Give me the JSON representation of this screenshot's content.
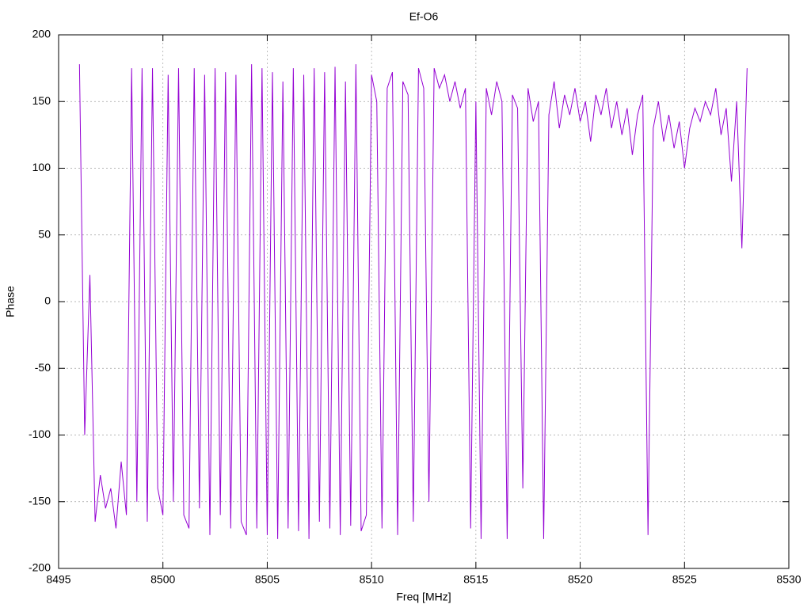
{
  "chart_data": {
    "type": "line",
    "title": "Ef-O6",
    "xlabel": "Freq [MHz]",
    "ylabel": "Phase",
    "x": [
      8496,
      8496.25,
      8496.5,
      8496.75,
      8497,
      8497.25,
      8497.5,
      8497.75,
      8498,
      8498.25,
      8498.5,
      8498.75,
      8499,
      8499.25,
      8499.5,
      8499.75,
      8500,
      8500.25,
      8500.5,
      8500.75,
      8501,
      8501.25,
      8501.5,
      8501.75,
      8502,
      8502.25,
      8502.5,
      8502.75,
      8503,
      8503.25,
      8503.5,
      8503.75,
      8504,
      8504.25,
      8504.5,
      8504.75,
      8505,
      8505.25,
      8505.5,
      8505.75,
      8506,
      8506.25,
      8506.5,
      8506.75,
      8507,
      8507.25,
      8507.5,
      8507.75,
      8508,
      8508.25,
      8508.5,
      8508.75,
      8509,
      8509.25,
      8509.5,
      8509.75,
      8510,
      8510.25,
      8510.5,
      8510.75,
      8511,
      8511.25,
      8511.5,
      8511.75,
      8512,
      8512.25,
      8512.5,
      8512.75,
      8513,
      8513.25,
      8513.5,
      8513.75,
      8514,
      8514.25,
      8514.5,
      8514.75,
      8515,
      8515.25,
      8515.5,
      8515.75,
      8516,
      8516.25,
      8516.5,
      8516.75,
      8517,
      8517.25,
      8517.5,
      8517.75,
      8518,
      8518.25,
      8518.5,
      8518.75,
      8519,
      8519.25,
      8519.5,
      8519.75,
      8520,
      8520.25,
      8520.5,
      8520.75,
      8521,
      8521.25,
      8521.5,
      8521.75,
      8522,
      8522.25,
      8522.5,
      8522.75,
      8523,
      8523.25,
      8523.5,
      8523.75,
      8524,
      8524.25,
      8524.5,
      8524.75,
      8525,
      8525.25,
      8525.5,
      8525.75,
      8526,
      8526.25,
      8526.5,
      8526.75,
      8527,
      8527.25,
      8527.5,
      8527.75,
      8528
    ],
    "series": [
      {
        "color": "#9400d3",
        "values": [
          178,
          -100,
          20,
          -165,
          -130,
          -155,
          -140,
          -170,
          -120,
          -160,
          175,
          -150,
          175,
          -165,
          175,
          -140,
          -160,
          170,
          -150,
          175,
          -160,
          -170,
          175,
          -155,
          170,
          -175,
          175,
          -160,
          172,
          -170,
          170,
          -165,
          -175,
          178,
          -170,
          175,
          -175,
          172,
          -178,
          165,
          -170,
          175,
          -172,
          170,
          -178,
          175,
          -165,
          172,
          -170,
          176,
          -175,
          165,
          -168,
          178,
          -172,
          -160,
          170,
          150,
          -170,
          160,
          172,
          -175,
          165,
          155,
          -165,
          175,
          160,
          -150,
          175,
          160,
          170,
          150,
          165,
          145,
          160,
          -170,
          150,
          -178,
          160,
          140,
          165,
          150,
          -178,
          155,
          145,
          -140,
          160,
          135,
          150,
          -178,
          140,
          165,
          130,
          155,
          140,
          160,
          135,
          150,
          120,
          155,
          140,
          160,
          130,
          150,
          125,
          145,
          110,
          140,
          155,
          -175,
          130,
          150,
          120,
          140,
          115,
          135,
          100,
          130,
          145,
          135,
          150,
          140,
          160,
          125,
          145,
          90,
          150,
          40,
          175
        ]
      }
    ],
    "xlim": [
      8495,
      8530
    ],
    "xticks": [
      8495,
      8500,
      8505,
      8510,
      8515,
      8520,
      8525,
      8530
    ],
    "ylim": [
      -200,
      200
    ],
    "yticks": [
      -200,
      -150,
      -100,
      -50,
      0,
      50,
      100,
      150,
      200
    ],
    "grid": true
  }
}
